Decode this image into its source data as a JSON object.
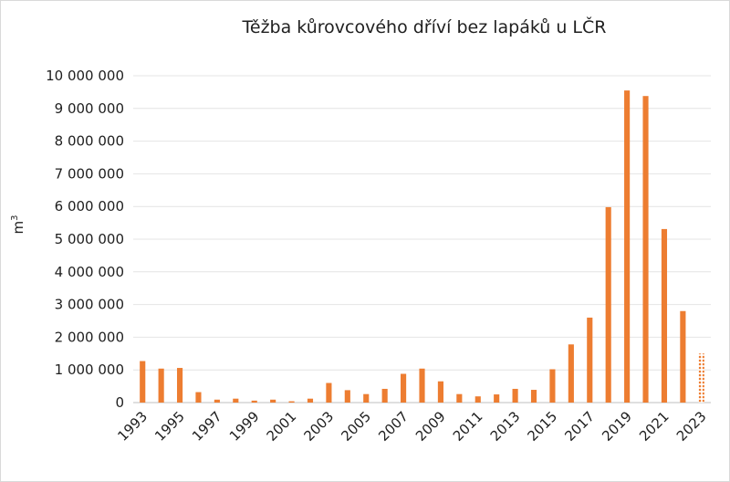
{
  "chart_data": {
    "type": "bar",
    "title": "Těžba kůrovcového dříví bez lapáků u LČR",
    "ylabel": "m",
    "ylabel_sup": "3",
    "xlabel": "",
    "ylim": [
      0,
      10000000
    ],
    "y_ticks": [
      "0",
      "1 000 000",
      "2 000 000",
      "3 000 000",
      "4 000 000",
      "5 000 000",
      "6 000 000",
      "7 000 000",
      "8 000 000",
      "9 000 000",
      "10 000 000"
    ],
    "grid": true,
    "bar_color": "#ed7d31",
    "categories": [
      "1993",
      "1994",
      "1995",
      "1996",
      "1997",
      "1998",
      "1999",
      "2000",
      "2001",
      "2002",
      "2003",
      "2004",
      "2005",
      "2006",
      "2007",
      "2008",
      "2009",
      "2010",
      "2011",
      "2012",
      "2013",
      "2014",
      "2015",
      "2016",
      "2017",
      "2018",
      "2019",
      "2020",
      "2021",
      "2022",
      "2023"
    ],
    "x_tick_labels": [
      "1993",
      "",
      "1995",
      "",
      "1997",
      "",
      "1999",
      "",
      "2001",
      "",
      "2003",
      "",
      "2005",
      "",
      "2007",
      "",
      "2009",
      "",
      "2011",
      "",
      "2013",
      "",
      "2015",
      "",
      "2017",
      "",
      "2019",
      "",
      "2021",
      "",
      "2023"
    ],
    "values": [
      1270000,
      1040000,
      1060000,
      320000,
      90000,
      120000,
      60000,
      90000,
      40000,
      120000,
      600000,
      380000,
      260000,
      420000,
      880000,
      1040000,
      650000,
      260000,
      190000,
      250000,
      420000,
      390000,
      1020000,
      1780000,
      2600000,
      5980000,
      9550000,
      9380000,
      5310000,
      2800000,
      1500000
    ],
    "patterned_last": true
  }
}
